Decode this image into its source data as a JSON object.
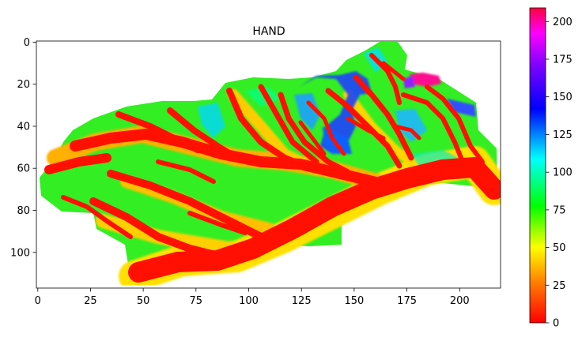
{
  "chart_data": {
    "type": "heatmap",
    "title": "HAND",
    "xlabel": "",
    "ylabel": "",
    "x_range": [
      0,
      220
    ],
    "y_range": [
      0,
      117
    ],
    "y_inverted": true,
    "x_ticks": [
      0,
      25,
      50,
      75,
      100,
      125,
      150,
      175,
      200
    ],
    "y_ticks": [
      0,
      20,
      40,
      60,
      80,
      100
    ],
    "colorbar": {
      "colormap": "gist_rainbow_r",
      "range": [
        0,
        209
      ],
      "ticks": [
        0,
        25,
        50,
        75,
        100,
        125,
        150,
        175,
        200
      ]
    },
    "grid": false,
    "colors": {
      "low": "#ff0000",
      "mid_low": "#ffff00",
      "mid": "#00ff40",
      "mid_high": "#00ffff",
      "high": "#0000ff",
      "top": "#ff0080"
    }
  }
}
